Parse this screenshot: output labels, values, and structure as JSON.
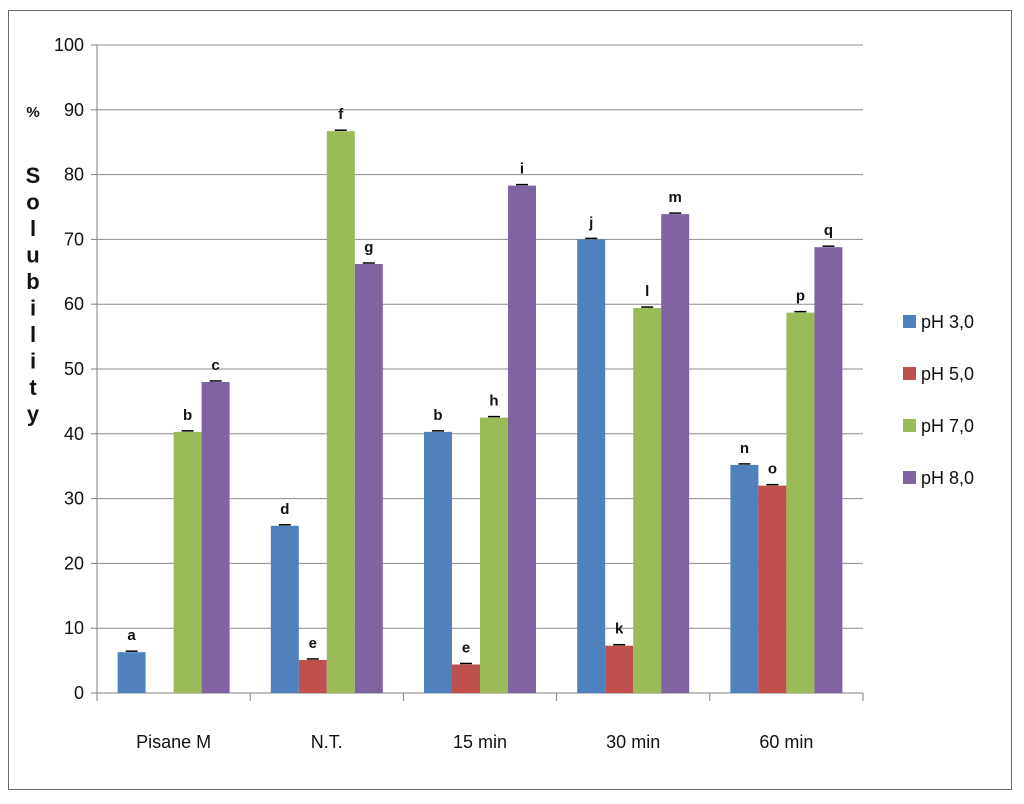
{
  "chart_data": {
    "type": "bar",
    "ylabel_prefix": "%",
    "ylabel": "Solubility",
    "ylim": [
      0,
      100
    ],
    "yticks": [
      0,
      10,
      20,
      30,
      40,
      50,
      60,
      70,
      80,
      90,
      100
    ],
    "grid": true,
    "legend_position": "right",
    "categories": [
      "Pisane M",
      "N.T.",
      "15 min",
      "30 min",
      "60 min"
    ],
    "series": [
      {
        "name": "pH 3,0",
        "color": "#4f81bd",
        "values": [
          6.3,
          25.8,
          40.3,
          70.0,
          35.2
        ],
        "labels": [
          "a",
          "d",
          "b",
          "j",
          "n"
        ]
      },
      {
        "name": "pH 5,0",
        "color": "#c0504d",
        "values": [
          null,
          5.1,
          4.4,
          7.3,
          32.0
        ],
        "labels": [
          "",
          "e",
          "e",
          "k",
          "o"
        ]
      },
      {
        "name": "pH 7,0",
        "color": "#9bbb59",
        "values": [
          40.3,
          86.7,
          42.5,
          59.4,
          58.7
        ],
        "labels": [
          "b",
          "f",
          "h",
          "l",
          "p"
        ]
      },
      {
        "name": "pH 8,0",
        "color": "#8064a2",
        "values": [
          48.0,
          66.2,
          78.3,
          73.9,
          68.8
        ],
        "labels": [
          "c",
          "g",
          "i",
          "m",
          "q"
        ]
      }
    ]
  }
}
